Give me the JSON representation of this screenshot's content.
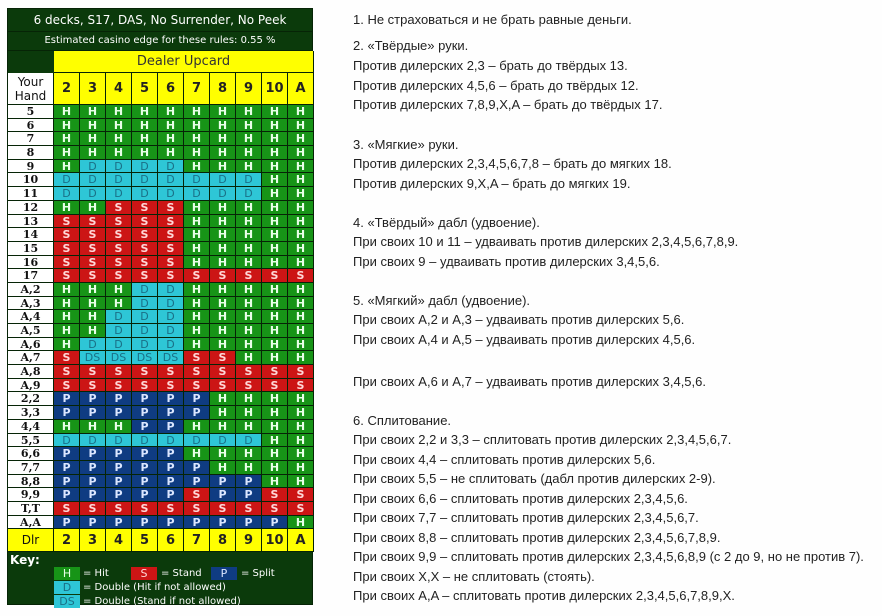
{
  "chart": {
    "title": "6 decks, S17, DAS, No Surrender, No Peek",
    "edge": "Estimated casino edge for these rules: 0.55 %",
    "dealer_upcard": "Dealer Upcard",
    "your_hand": "Your Hand",
    "upcards": [
      "2",
      "3",
      "4",
      "5",
      "6",
      "7",
      "8",
      "9",
      "10",
      "A"
    ],
    "dealer_row_label": "Dlr",
    "rows": [
      {
        "hand": "5",
        "a": [
          "H",
          "H",
          "H",
          "H",
          "H",
          "H",
          "H",
          "H",
          "H",
          "H"
        ]
      },
      {
        "hand": "6",
        "a": [
          "H",
          "H",
          "H",
          "H",
          "H",
          "H",
          "H",
          "H",
          "H",
          "H"
        ]
      },
      {
        "hand": "7",
        "a": [
          "H",
          "H",
          "H",
          "H",
          "H",
          "H",
          "H",
          "H",
          "H",
          "H"
        ]
      },
      {
        "hand": "8",
        "a": [
          "H",
          "H",
          "H",
          "H",
          "H",
          "H",
          "H",
          "H",
          "H",
          "H"
        ]
      },
      {
        "hand": "9",
        "a": [
          "H",
          "D",
          "D",
          "D",
          "D",
          "H",
          "H",
          "H",
          "H",
          "H"
        ]
      },
      {
        "hand": "10",
        "a": [
          "D",
          "D",
          "D",
          "D",
          "D",
          "D",
          "D",
          "D",
          "H",
          "H"
        ]
      },
      {
        "hand": "11",
        "a": [
          "D",
          "D",
          "D",
          "D",
          "D",
          "D",
          "D",
          "D",
          "H",
          "H"
        ]
      },
      {
        "hand": "12",
        "a": [
          "H",
          "H",
          "S",
          "S",
          "S",
          "H",
          "H",
          "H",
          "H",
          "H"
        ]
      },
      {
        "hand": "13",
        "a": [
          "S",
          "S",
          "S",
          "S",
          "S",
          "H",
          "H",
          "H",
          "H",
          "H"
        ]
      },
      {
        "hand": "14",
        "a": [
          "S",
          "S",
          "S",
          "S",
          "S",
          "H",
          "H",
          "H",
          "H",
          "H"
        ]
      },
      {
        "hand": "15",
        "a": [
          "S",
          "S",
          "S",
          "S",
          "S",
          "H",
          "H",
          "H",
          "H",
          "H"
        ]
      },
      {
        "hand": "16",
        "a": [
          "S",
          "S",
          "S",
          "S",
          "S",
          "H",
          "H",
          "H",
          "H",
          "H"
        ]
      },
      {
        "hand": "17",
        "a": [
          "S",
          "S",
          "S",
          "S",
          "S",
          "S",
          "S",
          "S",
          "S",
          "S"
        ]
      },
      {
        "hand": "A,2",
        "a": [
          "H",
          "H",
          "H",
          "D",
          "D",
          "H",
          "H",
          "H",
          "H",
          "H"
        ]
      },
      {
        "hand": "A,3",
        "a": [
          "H",
          "H",
          "H",
          "D",
          "D",
          "H",
          "H",
          "H",
          "H",
          "H"
        ]
      },
      {
        "hand": "A,4",
        "a": [
          "H",
          "H",
          "D",
          "D",
          "D",
          "H",
          "H",
          "H",
          "H",
          "H"
        ]
      },
      {
        "hand": "A,5",
        "a": [
          "H",
          "H",
          "D",
          "D",
          "D",
          "H",
          "H",
          "H",
          "H",
          "H"
        ]
      },
      {
        "hand": "A,6",
        "a": [
          "H",
          "D",
          "D",
          "D",
          "D",
          "H",
          "H",
          "H",
          "H",
          "H"
        ]
      },
      {
        "hand": "A,7",
        "a": [
          "S",
          "DS",
          "DS",
          "DS",
          "DS",
          "S",
          "S",
          "H",
          "H",
          "H"
        ]
      },
      {
        "hand": "A,8",
        "a": [
          "S",
          "S",
          "S",
          "S",
          "S",
          "S",
          "S",
          "S",
          "S",
          "S"
        ]
      },
      {
        "hand": "A,9",
        "a": [
          "S",
          "S",
          "S",
          "S",
          "S",
          "S",
          "S",
          "S",
          "S",
          "S"
        ]
      },
      {
        "hand": "2,2",
        "a": [
          "P",
          "P",
          "P",
          "P",
          "P",
          "P",
          "H",
          "H",
          "H",
          "H"
        ]
      },
      {
        "hand": "3,3",
        "a": [
          "P",
          "P",
          "P",
          "P",
          "P",
          "P",
          "H",
          "H",
          "H",
          "H"
        ]
      },
      {
        "hand": "4,4",
        "a": [
          "H",
          "H",
          "H",
          "P",
          "P",
          "H",
          "H",
          "H",
          "H",
          "H"
        ]
      },
      {
        "hand": "5,5",
        "a": [
          "D",
          "D",
          "D",
          "D",
          "D",
          "D",
          "D",
          "D",
          "H",
          "H"
        ]
      },
      {
        "hand": "6,6",
        "a": [
          "P",
          "P",
          "P",
          "P",
          "P",
          "H",
          "H",
          "H",
          "H",
          "H"
        ]
      },
      {
        "hand": "7,7",
        "a": [
          "P",
          "P",
          "P",
          "P",
          "P",
          "P",
          "H",
          "H",
          "H",
          "H"
        ]
      },
      {
        "hand": "8,8",
        "a": [
          "P",
          "P",
          "P",
          "P",
          "P",
          "P",
          "P",
          "P",
          "H",
          "H"
        ]
      },
      {
        "hand": "9,9",
        "a": [
          "P",
          "P",
          "P",
          "P",
          "P",
          "S",
          "P",
          "P",
          "S",
          "S"
        ]
      },
      {
        "hand": "T,T",
        "a": [
          "S",
          "S",
          "S",
          "S",
          "S",
          "S",
          "S",
          "S",
          "S",
          "S"
        ]
      },
      {
        "hand": "A,A",
        "a": [
          "P",
          "P",
          "P",
          "P",
          "P",
          "P",
          "P",
          "P",
          "P",
          "H"
        ]
      }
    ],
    "key": {
      "title": "Key:",
      "items": [
        {
          "code": "H",
          "text": "= Hit"
        },
        {
          "code": "S",
          "text": "= Stand"
        },
        {
          "code": "P",
          "text": "= Split"
        },
        {
          "code": "D",
          "text": "= Double (Hit if not allowed)"
        },
        {
          "code": "DS",
          "text": "= Double (Stand if not allowed)"
        }
      ]
    },
    "colors": {
      "hit": "#179417",
      "stand": "#cc1515",
      "split": "#0f3c82",
      "double": "#2ec6d6",
      "header": "#ffff00",
      "frame": "#0b3a0b"
    }
  },
  "notes": [
    "1. Не страховаться и не брать равные деньги.",
    "2. «Твёрдые» руки.",
    "Против дилерских 2,3 – брать до твёрдых 13.",
    "Против дилерских 4,5,6 – брать до твёрдых 12.",
    "Против дилерских 7,8,9,X,A – брать до твёрдых 17.",
    "3. «Мягкие» руки.",
    "Против дилерских 2,3,4,5,6,7,8 – брать до мягких 18.",
    "Против дилерских 9,X,A – брать до мягких 19.",
    "4. «Твёрдый» дабл (удвоение).",
    "При своих 10 и 11 – удваивать против дилерских 2,3,4,5,6,7,8,9.",
    "При своих 9 – удваивать против дилерских 3,4,5,6.",
    "5. «Мягкий» дабл (удвоение).",
    "При своих A,2 и A,3 – удваивать против дилерских 5,6.",
    "При своих A,4 и A,5 – удваивать против дилерских 4,5,6.",
    "При своих A,6 и A,7 – удваивать против дилерских 3,4,5,6.",
    "6. Сплитование.",
    "При своих 2,2 и 3,3 – сплитовать против дилерских 2,3,4,5,6,7.",
    "При своих 4,4 – сплитовать против дилерских 5,6.",
    "При своих 5,5 – не сплитовать (дабл против дилерских 2-9).",
    "При своих 6,6 – сплитовать против дилерских 2,3,4,5,6.",
    "При своих 7,7 – сплитовать против дилерских 2,3,4,5,6,7.",
    "При своих 8,8 – сплитовать против дилерских 2,3,4,5,6,7,8,9.",
    "При своих 9,9 – сплитовать против дилерских 2,3,4,5,6,8,9 (с 2 до 9, но не против 7).",
    "При своих X,X – не сплитовать (стоять).",
    "При своих A,A – сплитовать против дилерских 2,3,4,5,6,7,8,9,X."
  ]
}
